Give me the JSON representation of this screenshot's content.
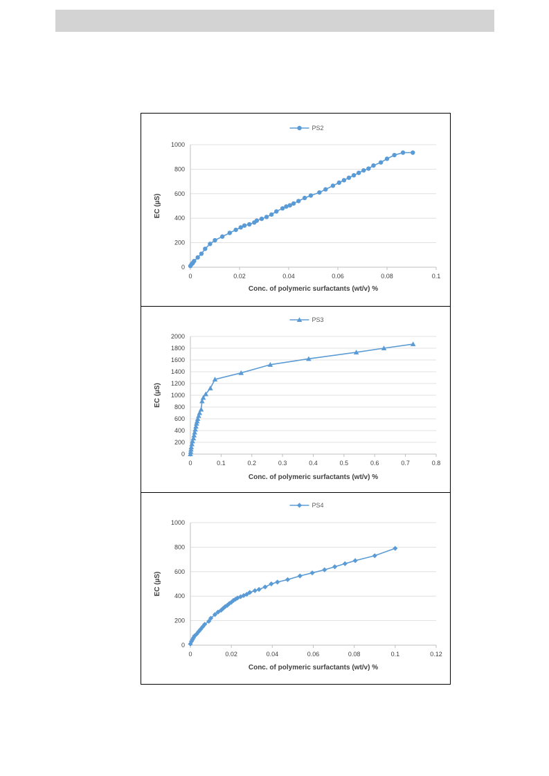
{
  "chart_data": [
    {
      "type": "line",
      "marker": "circle",
      "color": "#5b9bd5",
      "legend": "top",
      "grid": "horizontal",
      "xlabel": "Conc. of polymeric surfactants (wt/v) %",
      "ylabel": "EC (µS)",
      "xlim": [
        0,
        0.1
      ],
      "ylim": [
        0,
        1000
      ],
      "xticks": [
        "0",
        "0.02",
        "0.04",
        "0.06",
        "0.08",
        "0.1"
      ],
      "yticks": [
        "0",
        "200",
        "400",
        "600",
        "800",
        "1000"
      ],
      "series": [
        {
          "name": "PS2",
          "x": [
            0,
            0.0005,
            0.001,
            0.0015,
            0.003,
            0.0045,
            0.006,
            0.008,
            0.01,
            0.013,
            0.016,
            0.0185,
            0.0205,
            0.022,
            0.024,
            0.026,
            0.027,
            0.029,
            0.031,
            0.033,
            0.035,
            0.0375,
            0.039,
            0.0405,
            0.042,
            0.044,
            0.0465,
            0.049,
            0.0525,
            0.055,
            0.058,
            0.0605,
            0.0625,
            0.0645,
            0.0665,
            0.0685,
            0.0705,
            0.0725,
            0.0745,
            0.0775,
            0.08,
            0.083,
            0.0865,
            0.0905
          ],
          "y": [
            10,
            25,
            35,
            50,
            80,
            110,
            150,
            190,
            220,
            250,
            280,
            305,
            325,
            340,
            350,
            365,
            380,
            395,
            410,
            430,
            455,
            480,
            495,
            505,
            520,
            540,
            565,
            585,
            610,
            635,
            665,
            690,
            710,
            730,
            750,
            770,
            790,
            805,
            830,
            855,
            885,
            915,
            935,
            935
          ]
        }
      ]
    },
    {
      "type": "line",
      "marker": "triangle",
      "color": "#5b9bd5",
      "legend": "top",
      "grid": "horizontal",
      "xlabel": "Conc. of polymeric surfactants (wt/v) %",
      "ylabel": "EC (µS)",
      "xlim": [
        0,
        0.8
      ],
      "ylim": [
        0,
        2000
      ],
      "xticks": [
        "0",
        "0.1",
        "0.2",
        "0.3",
        "0.4",
        "0.5",
        "0.6",
        "0.7",
        "0.8"
      ],
      "yticks": [
        "0",
        "200",
        "400",
        "600",
        "800",
        "1000",
        "1200",
        "1400",
        "1600",
        "1800",
        "2000"
      ],
      "series": [
        {
          "name": "PS3",
          "x": [
            0,
            0.001,
            0.002,
            0.003,
            0.005,
            0.007,
            0.01,
            0.012,
            0.014,
            0.016,
            0.018,
            0.02,
            0.022,
            0.024,
            0.027,
            0.03,
            0.035,
            0.038,
            0.042,
            0.05,
            0.065,
            0.08,
            0.165,
            0.26,
            0.385,
            0.54,
            0.63,
            0.725
          ],
          "y": [
            0,
            40,
            80,
            120,
            170,
            220,
            270,
            320,
            370,
            420,
            470,
            520,
            560,
            600,
            650,
            700,
            760,
            900,
            960,
            1020,
            1120,
            1270,
            1380,
            1520,
            1620,
            1730,
            1800,
            1870
          ]
        }
      ]
    },
    {
      "type": "line",
      "marker": "diamond",
      "color": "#5b9bd5",
      "legend": "top",
      "grid": "horizontal",
      "xlabel": "Conc. of polymeric surfactants (wt/v) %",
      "ylabel": "EC (µS)",
      "xlim": [
        0,
        0.12
      ],
      "ylim": [
        0,
        1000
      ],
      "xticks": [
        "0",
        "0.02",
        "0.04",
        "0.06",
        "0.08",
        "0.1",
        "0.12"
      ],
      "yticks": [
        "0",
        "200",
        "400",
        "600",
        "800",
        "1000"
      ],
      "series": [
        {
          "name": "PS4",
          "x": [
            0,
            0.0005,
            0.001,
            0.0015,
            0.002,
            0.003,
            0.004,
            0.005,
            0.006,
            0.007,
            0.009,
            0.01,
            0.012,
            0.0135,
            0.015,
            0.016,
            0.017,
            0.018,
            0.019,
            0.02,
            0.021,
            0.022,
            0.023,
            0.0245,
            0.026,
            0.0275,
            0.029,
            0.0315,
            0.0335,
            0.0365,
            0.0395,
            0.0425,
            0.0475,
            0.0535,
            0.0595,
            0.0655,
            0.0705,
            0.0755,
            0.0805,
            0.09,
            0.1
          ],
          "y": [
            10,
            30,
            45,
            60,
            75,
            90,
            110,
            130,
            150,
            170,
            195,
            220,
            250,
            270,
            285,
            300,
            315,
            325,
            340,
            350,
            365,
            375,
            385,
            395,
            405,
            415,
            430,
            445,
            455,
            475,
            500,
            515,
            535,
            565,
            590,
            615,
            640,
            665,
            690,
            730,
            790
          ]
        }
      ]
    }
  ]
}
